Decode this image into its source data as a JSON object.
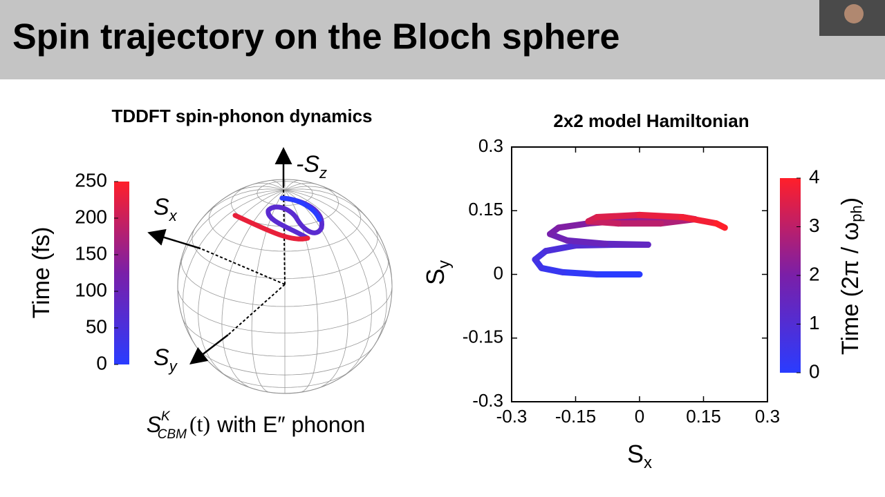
{
  "title": "Spin trajectory on the Bloch sphere",
  "left_panel": {
    "title": "TDDFT spin-phonon dynamics",
    "axis_z": {
      "main": "-S",
      "sub": "z"
    },
    "axis_x": {
      "main": "S",
      "sub": "x"
    },
    "axis_y": {
      "main": "S",
      "sub": "y"
    },
    "colorbar": {
      "label": "Time (fs)",
      "lim": [
        0,
        250
      ],
      "ticks": [
        0,
        50,
        100,
        150,
        200,
        250
      ]
    },
    "caption": {
      "main": "S",
      "sub": "CBM",
      "sup": "K",
      "arg": "(t)",
      "rest": "with E″ phonon"
    }
  },
  "chart_data": {
    "type": "line",
    "title": "2x2 model Hamiltonian",
    "x_label": {
      "main": "S",
      "sub": "x"
    },
    "y_label": {
      "main": "S",
      "sub": "y"
    },
    "xlim": [
      -0.3,
      0.3
    ],
    "xticks": [
      -0.3,
      -0.15,
      0,
      0.15,
      0.3
    ],
    "ylim": [
      -0.3,
      0.3
    ],
    "yticks": [
      -0.3,
      -0.15,
      0,
      0.15,
      0.3
    ],
    "colormap": [
      "#2a3cff",
      "#7a1fa8",
      "#ff1f2a"
    ],
    "colorbar": {
      "label_main": "Time (2π / ω",
      "label_sub": "ph",
      "label_end": ")",
      "lim": [
        0,
        4
      ],
      "ticks": [
        0,
        1,
        2,
        3,
        4
      ]
    },
    "series": [
      {
        "x": [
          0,
          -0.1,
          -0.18,
          -0.23,
          -0.245,
          -0.22,
          -0.15,
          -0.05,
          0.02,
          -0.08,
          -0.17,
          -0.21,
          -0.19,
          -0.12,
          0,
          0.1,
          0.13,
          0.05,
          -0.05,
          -0.12,
          -0.1,
          0,
          0.1,
          0.18,
          0.2
        ],
        "y": [
          0,
          0,
          0.005,
          0.015,
          0.035,
          0.055,
          0.068,
          0.07,
          0.07,
          0.072,
          0.08,
          0.095,
          0.11,
          0.12,
          0.13,
          0.135,
          0.13,
          0.12,
          0.12,
          0.125,
          0.135,
          0.14,
          0.135,
          0.12,
          0.11
        ]
      }
    ]
  }
}
